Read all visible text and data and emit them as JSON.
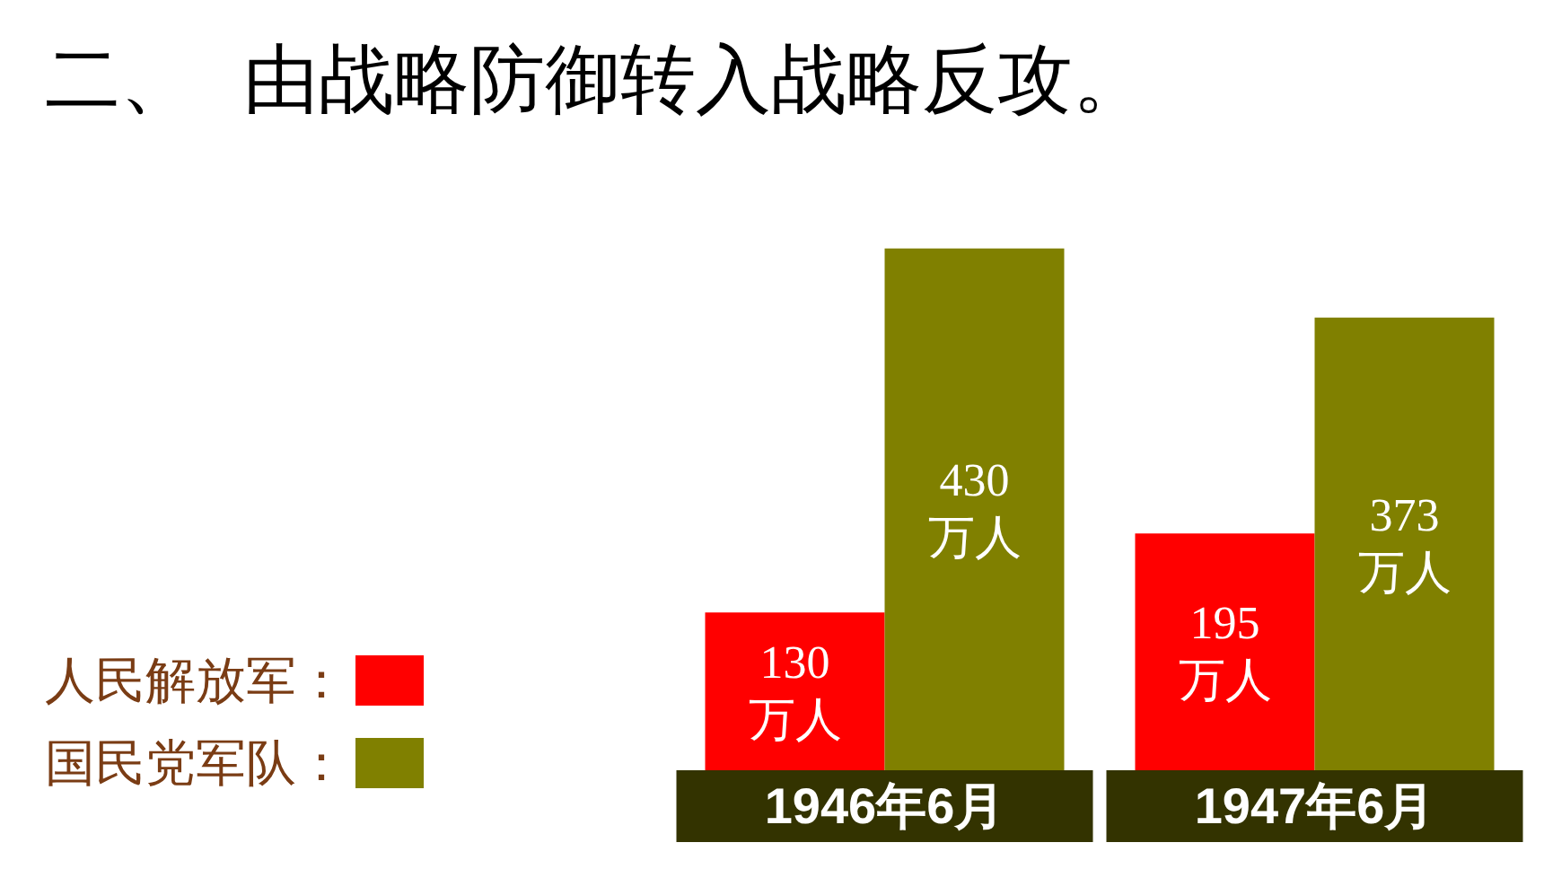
{
  "chart_data": {
    "type": "bar",
    "title": "二、  由战略防御转入战略反攻。",
    "categories": [
      "1946年6月",
      "1947年6月"
    ],
    "series": [
      {
        "name": "人民解放军：",
        "color": "#ff0000",
        "values": [
          130,
          195
        ],
        "value_labels": [
          "130\n万人",
          "195\n万人"
        ]
      },
      {
        "name": "国民党军队：",
        "color": "#808000",
        "values": [
          430,
          373
        ],
        "value_labels": [
          "430\n万人",
          "373\n万人"
        ]
      }
    ],
    "legend": "left"
  }
}
